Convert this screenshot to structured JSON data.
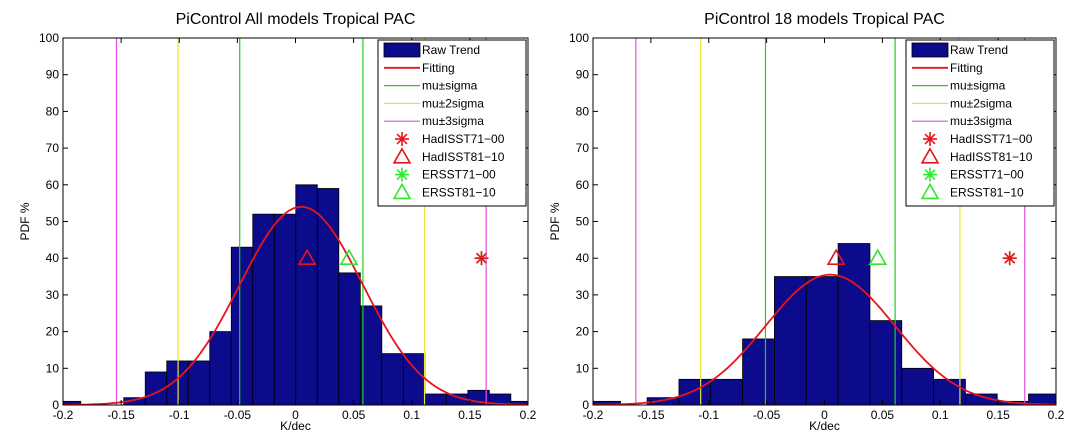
{
  "chart_data": [
    {
      "type": "bar",
      "title": "PiControl All models Tropical PAC",
      "xlabel": "K/dec",
      "ylabel": "PDF %",
      "xlim": [
        -0.2,
        0.2
      ],
      "ylim": [
        0,
        100
      ],
      "xticks": [
        "-0.2",
        "-0.15",
        "-0.1",
        "-0.05",
        "0",
        "0.05",
        "0.1",
        "0.15",
        "0.2"
      ],
      "yticks": [
        "0",
        "10",
        "20",
        "30",
        "40",
        "50",
        "60",
        "70",
        "80",
        "90",
        "100"
      ],
      "grid": false,
      "legend_position": "top-right",
      "bar_color": "#0b0b8c",
      "bin_width": 0.0185,
      "bins": [
        {
          "x": -0.194,
          "value": 1
        },
        {
          "x": -0.1385,
          "value": 2
        },
        {
          "x": -0.12,
          "value": 9
        },
        {
          "x": -0.1015,
          "value": 12
        },
        {
          "x": -0.083,
          "value": 12
        },
        {
          "x": -0.0645,
          "value": 20
        },
        {
          "x": -0.046,
          "value": 43
        },
        {
          "x": -0.0275,
          "value": 52
        },
        {
          "x": -0.009,
          "value": 52
        },
        {
          "x": 0.0095,
          "value": 60
        },
        {
          "x": 0.028,
          "value": 59
        },
        {
          "x": 0.0465,
          "value": 36
        },
        {
          "x": 0.065,
          "value": 27
        },
        {
          "x": 0.0835,
          "value": 14
        },
        {
          "x": 0.102,
          "value": 14
        },
        {
          "x": 0.1205,
          "value": 3
        },
        {
          "x": 0.139,
          "value": 3
        },
        {
          "x": 0.1575,
          "value": 4
        },
        {
          "x": 0.176,
          "value": 3
        },
        {
          "x": 0.1945,
          "value": 1
        }
      ],
      "fit": {
        "mu": 0.005,
        "sigma": 0.053,
        "peak": 54
      },
      "vlines": {
        "sigma": [
          -0.048,
          0.058
        ],
        "two_sigma": [
          -0.101,
          0.111
        ],
        "three_sigma": [
          -0.154,
          0.164
        ]
      },
      "markers": {
        "hadisst71": {
          "x": 0.16,
          "y": 40
        },
        "hadisst81": {
          "x": 0.01,
          "y": 40
        },
        "ersst71": {
          "x": 0.16,
          "y": 40
        },
        "ersst81": {
          "x": 0.046,
          "y": 40
        }
      },
      "legend": [
        "Raw Trend",
        "Fitting",
        "mu±sigma",
        "mu±2sigma",
        "mu±3sigma",
        "HadISST71−00",
        "HadISST81−10",
        "ERSST71−00",
        "ERSST81−10"
      ]
    },
    {
      "type": "bar",
      "title": "PiControl 18 models Tropical PAC",
      "xlabel": "K/dec",
      "ylabel": "PDF %",
      "xlim": [
        -0.2,
        0.2
      ],
      "ylim": [
        0,
        100
      ],
      "xticks": [
        "-0.2",
        "-0.15",
        "-0.1",
        "-0.05",
        "0",
        "0.05",
        "0.1",
        "0.15",
        "0.2"
      ],
      "yticks": [
        "0",
        "10",
        "20",
        "30",
        "40",
        "50",
        "60",
        "70",
        "80",
        "90",
        "100"
      ],
      "grid": false,
      "legend_position": "top-right",
      "bar_color": "#0b0b8c",
      "bin_width": 0.0275,
      "bins": [
        {
          "x": -0.19,
          "value": 1
        },
        {
          "x": -0.1395,
          "value": 2
        },
        {
          "x": -0.112,
          "value": 7
        },
        {
          "x": -0.0845,
          "value": 7
        },
        {
          "x": -0.057,
          "value": 18
        },
        {
          "x": -0.0295,
          "value": 35
        },
        {
          "x": -0.002,
          "value": 35
        },
        {
          "x": 0.0255,
          "value": 44
        },
        {
          "x": 0.053,
          "value": 23
        },
        {
          "x": 0.0805,
          "value": 10
        },
        {
          "x": 0.108,
          "value": 7
        },
        {
          "x": 0.1355,
          "value": 3
        },
        {
          "x": 0.163,
          "value": 1
        },
        {
          "x": 0.19,
          "value": 3
        }
      ],
      "fit": {
        "mu": 0.005,
        "sigma": 0.056,
        "peak": 35.5
      },
      "vlines": {
        "sigma": [
          -0.051,
          0.061
        ],
        "two_sigma": [
          -0.107,
          0.117
        ],
        "three_sigma": [
          -0.163,
          0.173
        ]
      },
      "markers": {
        "hadisst71": {
          "x": 0.16,
          "y": 40
        },
        "hadisst81": {
          "x": 0.01,
          "y": 40
        },
        "ersst71": {
          "x": 0.16,
          "y": 40
        },
        "ersst81": {
          "x": 0.046,
          "y": 40
        }
      },
      "legend": [
        "Raw Trend",
        "Fitting",
        "mu±sigma",
        "mu±2sigma",
        "mu±3sigma",
        "HadISST71−00",
        "HadISST81−10",
        "ERSST71−00",
        "ERSST81−10"
      ]
    }
  ],
  "colors": {
    "bar": "#0b0b8c",
    "fitting": "#e8141c",
    "sigma": "#22cc22",
    "two_sigma": "#e6e633",
    "three_sigma": "#e64de6",
    "hadisst": "#e8141c",
    "ersst": "#2ee62e"
  }
}
